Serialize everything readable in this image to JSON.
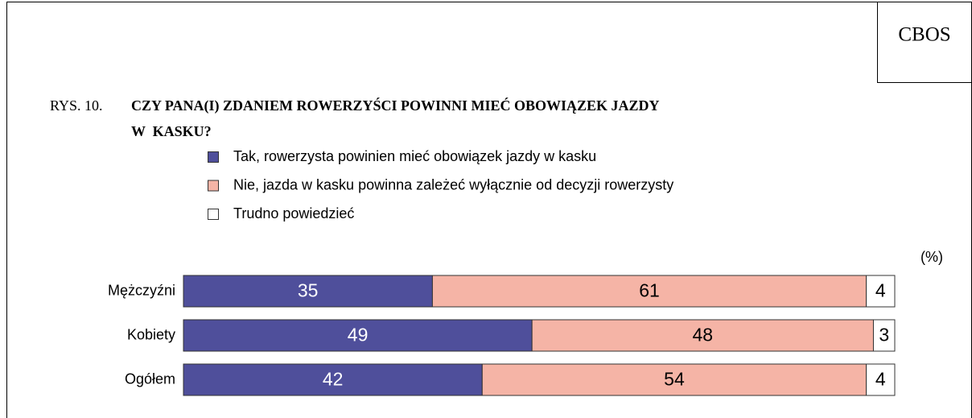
{
  "chart_data": {
    "type": "stacked_bar_horizontal",
    "source": "CBOS",
    "figure_label": "RYS. 10.",
    "title": [
      "CZY PANA(I) ZDANIEM ROWERZYŚCI POWINNI MIEĆ OBOWIĄZEK JAZDY",
      "W  KASKU?"
    ],
    "unit": "(%)",
    "categories": [
      "Mężczyźni",
      "Kobiety",
      "Ogółem"
    ],
    "series": [
      {
        "name": "Tak, rowerzysta powinien mieć obowiązek jazdy w kasku",
        "color": "#4f4f9b",
        "label_color": "#ffffff",
        "values": [
          35,
          49,
          42
        ]
      },
      {
        "name": "Nie, jazda w kasku powinna zależeć wyłącznie od decyzji rowerzysty",
        "color": "#f5b4a6",
        "label_color": "#000000",
        "values": [
          61,
          48,
          54
        ]
      },
      {
        "name": "Trudno powiedzieć",
        "color": "#ffffff",
        "label_color": "#000000",
        "values": [
          4,
          3,
          4
        ]
      }
    ],
    "xlim": [
      0,
      100
    ]
  }
}
